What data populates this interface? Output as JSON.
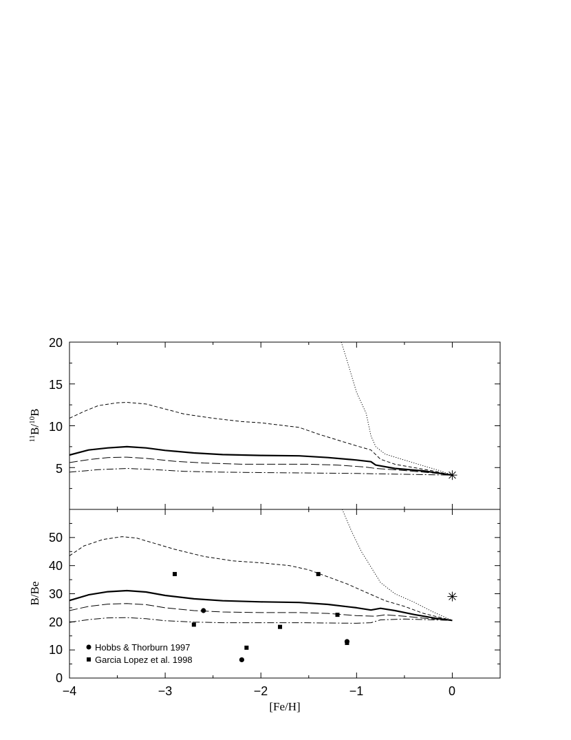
{
  "chart_data": [
    {
      "panel": "top",
      "type": "line",
      "xlabel": "[Fe/H]",
      "ylabel": {
        "iso_a": "11",
        "b1": "B/",
        "iso_b": "10",
        "b2": "B"
      },
      "xlim": [
        -4,
        0.5
      ],
      "ylim": [
        0,
        20
      ],
      "xticks": [
        "-4",
        "-3",
        "-2",
        "-1",
        "0"
      ],
      "yticks": [
        "20",
        "15",
        "10",
        "5"
      ],
      "ytick_values": [
        20,
        15,
        10,
        5
      ],
      "series": [
        {
          "style": "dotted",
          "points": [
            [
              -1.16,
              20.0
            ],
            [
              -1.1,
              17.8
            ],
            [
              -1.0,
              14.0
            ],
            [
              -0.9,
              11.5
            ],
            [
              -0.85,
              8.8
            ],
            [
              -0.8,
              7.5
            ],
            [
              -0.7,
              6.6
            ],
            [
              -0.5,
              5.9
            ],
            [
              -0.3,
              5.2
            ],
            [
              -0.15,
              4.7
            ],
            [
              0.0,
              4.1
            ]
          ]
        },
        {
          "style": "short-dash",
          "points": [
            [
              -4.0,
              10.9
            ],
            [
              -3.85,
              11.7
            ],
            [
              -3.7,
              12.4
            ],
            [
              -3.5,
              12.75
            ],
            [
              -3.4,
              12.8
            ],
            [
              -3.2,
              12.6
            ],
            [
              -3.0,
              12.0
            ],
            [
              -2.8,
              11.4
            ],
            [
              -2.5,
              10.9
            ],
            [
              -2.2,
              10.5
            ],
            [
              -2.0,
              10.35
            ],
            [
              -1.6,
              9.8
            ],
            [
              -1.4,
              9.0
            ],
            [
              -1.2,
              8.3
            ],
            [
              -1.0,
              7.6
            ],
            [
              -0.85,
              7.1
            ],
            [
              -0.75,
              6.0
            ],
            [
              -0.6,
              5.4
            ],
            [
              -0.4,
              5.0
            ],
            [
              -0.2,
              4.6
            ],
            [
              0.0,
              4.1
            ]
          ]
        },
        {
          "style": "solid",
          "points": [
            [
              -4.0,
              6.5
            ],
            [
              -3.8,
              7.1
            ],
            [
              -3.6,
              7.35
            ],
            [
              -3.4,
              7.5
            ],
            [
              -3.2,
              7.35
            ],
            [
              -3.0,
              7.05
            ],
            [
              -2.7,
              6.75
            ],
            [
              -2.4,
              6.55
            ],
            [
              -2.0,
              6.45
            ],
            [
              -1.6,
              6.4
            ],
            [
              -1.3,
              6.2
            ],
            [
              -1.0,
              5.9
            ],
            [
              -0.85,
              5.7
            ],
            [
              -0.8,
              5.3
            ],
            [
              -0.6,
              4.9
            ],
            [
              -0.3,
              4.6
            ],
            [
              0.0,
              4.1
            ]
          ]
        },
        {
          "style": "long-dash",
          "points": [
            [
              -4.0,
              5.6
            ],
            [
              -3.8,
              5.95
            ],
            [
              -3.6,
              6.2
            ],
            [
              -3.4,
              6.25
            ],
            [
              -3.2,
              6.1
            ],
            [
              -2.9,
              5.75
            ],
            [
              -2.6,
              5.55
            ],
            [
              -2.2,
              5.4
            ],
            [
              -1.8,
              5.4
            ],
            [
              -1.5,
              5.4
            ],
            [
              -1.2,
              5.3
            ],
            [
              -0.9,
              5.05
            ],
            [
              -0.8,
              4.9
            ],
            [
              -0.5,
              4.65
            ],
            [
              -0.2,
              4.35
            ],
            [
              0.0,
              4.1
            ]
          ]
        },
        {
          "style": "dash-dot",
          "points": [
            [
              -4.0,
              4.45
            ],
            [
              -3.7,
              4.75
            ],
            [
              -3.4,
              4.9
            ],
            [
              -3.1,
              4.75
            ],
            [
              -2.8,
              4.55
            ],
            [
              -2.4,
              4.45
            ],
            [
              -2.0,
              4.4
            ],
            [
              -1.5,
              4.35
            ],
            [
              -1.0,
              4.3
            ],
            [
              -0.5,
              4.2
            ],
            [
              0.0,
              4.1
            ]
          ]
        }
      ],
      "markers": [
        {
          "shape": "asterisk",
          "x": 0.0,
          "y": 4.1
        }
      ]
    },
    {
      "panel": "bottom",
      "type": "line",
      "xlabel": "[Fe/H]",
      "ylabel": "B/Be",
      "xlim": [
        -4,
        0.5
      ],
      "ylim": [
        0,
        60
      ],
      "xticks": [
        "-4",
        "-3",
        "-2",
        "-1",
        "0"
      ],
      "xtick_values": [
        -4,
        -3,
        -2,
        -1,
        0
      ],
      "yticks": [
        "0",
        "10",
        "20",
        "30",
        "40",
        "50"
      ],
      "ytick_values": [
        0,
        10,
        20,
        30,
        40,
        50
      ],
      "series": [
        {
          "style": "dotted",
          "points": [
            [
              -1.15,
              60.0
            ],
            [
              -1.05,
              52.0
            ],
            [
              -0.95,
              45.0
            ],
            [
              -0.85,
              39.5
            ],
            [
              -0.75,
              34.0
            ],
            [
              -0.6,
              30.0
            ],
            [
              -0.4,
              27.0
            ],
            [
              -0.2,
              23.5
            ],
            [
              0.0,
              20.5
            ]
          ]
        },
        {
          "style": "short-dash",
          "points": [
            [
              -4.0,
              43.5
            ],
            [
              -3.85,
              47.0
            ],
            [
              -3.65,
              49.3
            ],
            [
              -3.45,
              50.3
            ],
            [
              -3.3,
              49.8
            ],
            [
              -3.1,
              47.8
            ],
            [
              -2.9,
              45.8
            ],
            [
              -2.6,
              43.3
            ],
            [
              -2.3,
              41.7
            ],
            [
              -2.0,
              41.0
            ],
            [
              -1.7,
              40.0
            ],
            [
              -1.5,
              38.5
            ],
            [
              -1.3,
              36.0
            ],
            [
              -1.1,
              33.5
            ],
            [
              -0.9,
              30.5
            ],
            [
              -0.7,
              27.5
            ],
            [
              -0.5,
              25.5
            ],
            [
              -0.3,
              23.0
            ],
            [
              0.0,
              20.5
            ]
          ]
        },
        {
          "style": "solid",
          "points": [
            [
              -4.0,
              27.6
            ],
            [
              -3.8,
              29.6
            ],
            [
              -3.6,
              30.7
            ],
            [
              -3.4,
              31.1
            ],
            [
              -3.2,
              30.6
            ],
            [
              -3.0,
              29.4
            ],
            [
              -2.7,
              28.2
            ],
            [
              -2.4,
              27.5
            ],
            [
              -2.0,
              27.1
            ],
            [
              -1.6,
              26.9
            ],
            [
              -1.3,
              26.2
            ],
            [
              -1.0,
              25.0
            ],
            [
              -0.85,
              24.2
            ],
            [
              -0.75,
              24.8
            ],
            [
              -0.6,
              24.0
            ],
            [
              -0.4,
              22.6
            ],
            [
              -0.2,
              21.4
            ],
            [
              0.0,
              20.5
            ]
          ]
        },
        {
          "style": "long-dash",
          "points": [
            [
              -4.0,
              24.0
            ],
            [
              -3.8,
              25.5
            ],
            [
              -3.6,
              26.3
            ],
            [
              -3.4,
              26.5
            ],
            [
              -3.2,
              26.1
            ],
            [
              -3.0,
              25.0
            ],
            [
              -2.7,
              24.0
            ],
            [
              -2.4,
              23.5
            ],
            [
              -2.0,
              23.3
            ],
            [
              -1.6,
              23.3
            ],
            [
              -1.3,
              23.0
            ],
            [
              -1.0,
              22.2
            ],
            [
              -0.8,
              22.0
            ],
            [
              -0.7,
              22.5
            ],
            [
              -0.5,
              22.0
            ],
            [
              -0.3,
              21.3
            ],
            [
              0.0,
              20.5
            ]
          ]
        },
        {
          "style": "dash-dot",
          "points": [
            [
              -4.0,
              19.8
            ],
            [
              -3.8,
              20.8
            ],
            [
              -3.6,
              21.4
            ],
            [
              -3.4,
              21.5
            ],
            [
              -3.2,
              21.1
            ],
            [
              -3.0,
              20.4
            ],
            [
              -2.7,
              19.9
            ],
            [
              -2.4,
              19.7
            ],
            [
              -2.0,
              19.7
            ],
            [
              -1.6,
              19.7
            ],
            [
              -1.3,
              19.6
            ],
            [
              -1.0,
              19.5
            ],
            [
              -0.85,
              19.7
            ],
            [
              -0.75,
              20.7
            ],
            [
              -0.5,
              21.0
            ],
            [
              -0.3,
              20.8
            ],
            [
              0.0,
              20.5
            ]
          ]
        }
      ],
      "markers": [
        {
          "shape": "asterisk",
          "x": 0.0,
          "y": 29.0
        }
      ],
      "scatter": [
        {
          "name": "Hobbs & Thorburn 1997",
          "shape": "circle",
          "points": [
            [
              -2.6,
              24.0
            ],
            [
              -2.2,
              6.5
            ],
            [
              -1.1,
              13.0
            ]
          ]
        },
        {
          "name": "Garcia Lopez et al. 1998",
          "shape": "square",
          "points": [
            [
              -2.9,
              37.0
            ],
            [
              -2.7,
              19.0
            ],
            [
              -2.15,
              10.8
            ],
            [
              -1.8,
              18.2
            ],
            [
              -1.4,
              37.0
            ],
            [
              -1.2,
              22.5
            ],
            [
              -1.1,
              12.5
            ]
          ]
        }
      ],
      "legend_position": "bottom-left"
    }
  ]
}
